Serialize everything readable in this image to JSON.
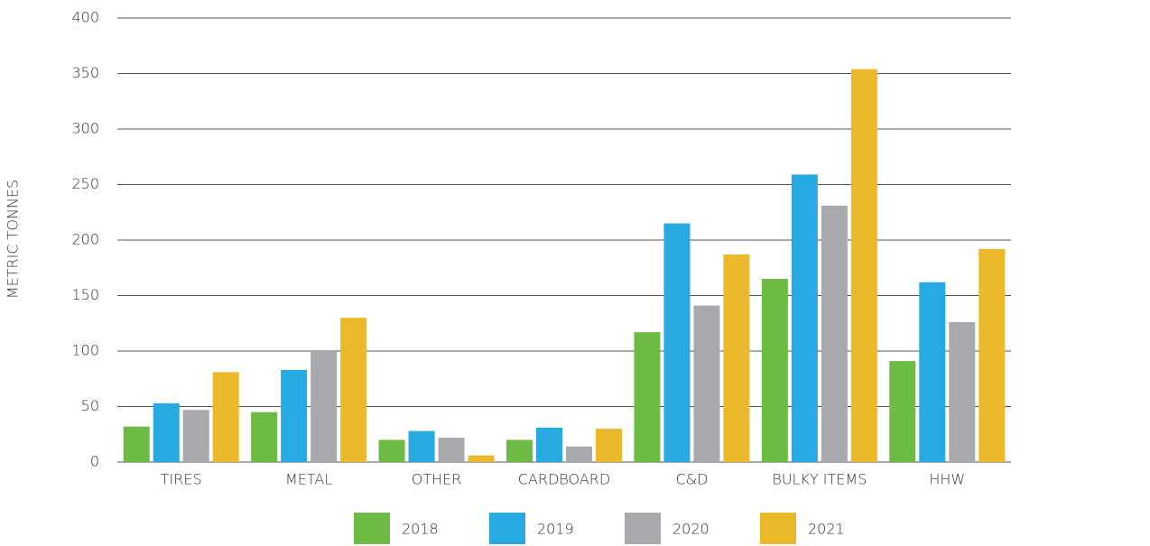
{
  "chart_data": {
    "type": "bar",
    "y_label": "METRIC TONNES",
    "categories": [
      "TIRES",
      "METAL",
      "OTHER",
      "CARDBOARD",
      "C&D",
      "BULKY ITEMS",
      "HHW"
    ],
    "series": [
      {
        "name": "2018",
        "color": "#6dbb45",
        "values": [
          32,
          45,
          20,
          20,
          117,
          165,
          91
        ]
      },
      {
        "name": "2019",
        "color": "#27aae1",
        "values": [
          53,
          83,
          28,
          31,
          215,
          259,
          162
        ]
      },
      {
        "name": "2020",
        "color": "#a7a9ac",
        "values": [
          47,
          100,
          22,
          14,
          141,
          231,
          126
        ]
      },
      {
        "name": "2021",
        "color": "#ebb92b",
        "values": [
          81,
          130,
          6,
          30,
          187,
          354,
          192
        ]
      }
    ],
    "ylim": [
      0,
      400
    ],
    "yticks": [
      0,
      50,
      100,
      150,
      200,
      250,
      300,
      350,
      400
    ],
    "grid": true,
    "legend": "bottom"
  }
}
